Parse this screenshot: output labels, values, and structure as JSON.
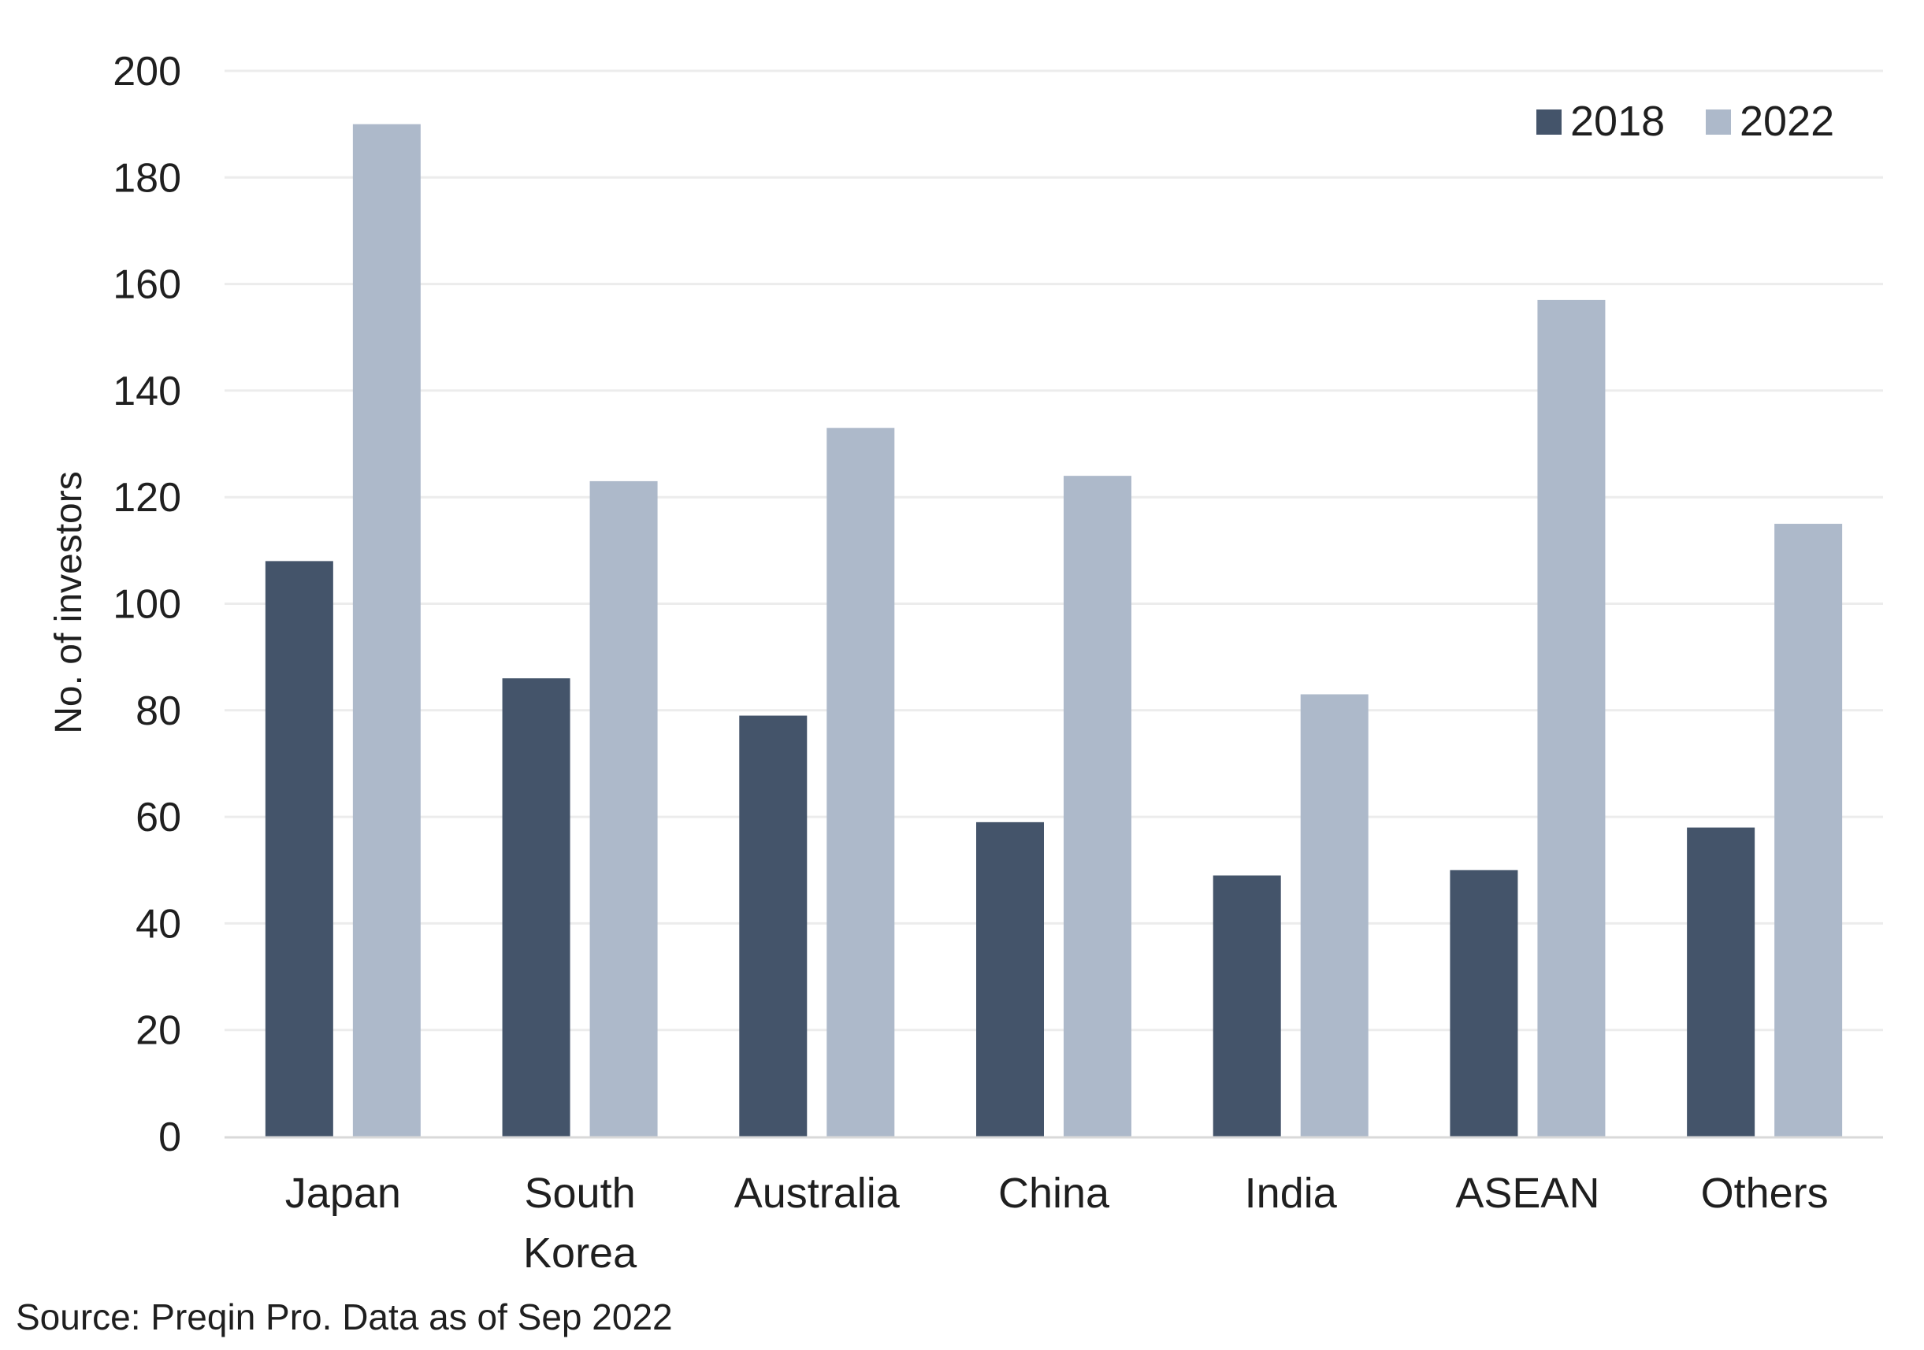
{
  "chart_data": {
    "type": "bar",
    "title": "",
    "xlabel": "",
    "ylabel": "No. of investors",
    "ylim": [
      0,
      200
    ],
    "yticks": [
      0,
      20,
      40,
      60,
      80,
      100,
      120,
      140,
      160,
      180,
      200
    ],
    "categories": [
      [
        "Japan"
      ],
      [
        "South",
        "Korea"
      ],
      [
        "Australia"
      ],
      [
        "China"
      ],
      [
        "India"
      ],
      [
        "ASEAN"
      ],
      [
        "Others"
      ]
    ],
    "series": [
      {
        "name": "2018",
        "color": "#44546a",
        "values": [
          108,
          86,
          79,
          59,
          49,
          50,
          58
        ]
      },
      {
        "name": "2022",
        "color": "#adb9ca",
        "values": [
          190,
          123,
          133,
          124,
          83,
          157,
          115
        ]
      }
    ],
    "grid": true,
    "legend_position": "top-right"
  },
  "source": "Source: Preqin Pro. Data as of Sep 2022"
}
